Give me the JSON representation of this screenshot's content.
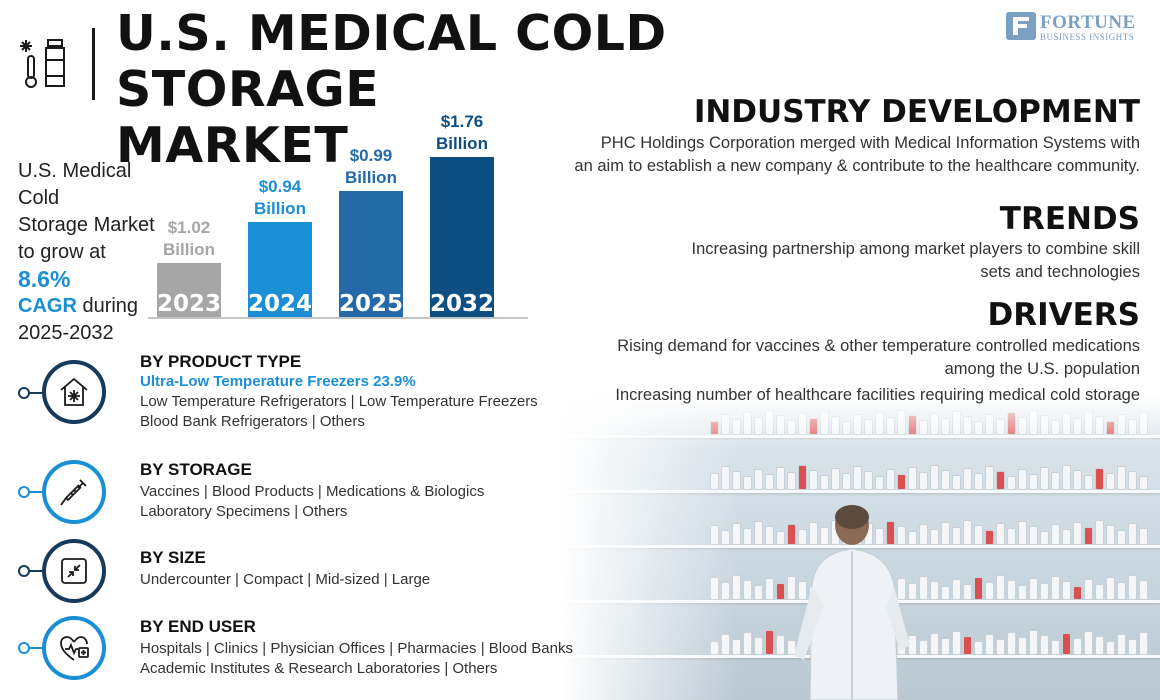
{
  "header": {
    "title_line1": "U.S. MEDICAL COLD STORAGE",
    "title_line2": "MARKET",
    "brand_name": "FORTUNE",
    "brand_sub": "BUSINESS INSIGHTS",
    "icon": "thermometer-vial-icon"
  },
  "stat": {
    "line1": "U.S. Medical Cold",
    "line2": "Storage Market",
    "line3": "to grow at",
    "cagr_value": "8.6%",
    "cagr_label": "CAGR",
    "during": " during",
    "period": "2025-2032"
  },
  "chart_data": {
    "type": "bar",
    "categories": [
      "2023",
      "2024",
      "2025",
      "2032"
    ],
    "values": [
      1.02,
      0.94,
      0.99,
      1.76
    ],
    "value_labels": [
      "$1.02",
      "$0.94",
      "$0.99",
      "$1.76"
    ],
    "unit_label": "Billion",
    "colors": [
      "#a6a6a6",
      "#1a8fd6",
      "#2469a8",
      "#0d4f82"
    ],
    "label_colors": [
      "#a6a6a6",
      "#1a8fd6",
      "#2469a8",
      "#0d4f82"
    ]
  },
  "industry": {
    "heading": "INDUSTRY DEVELOPMENT",
    "line1": "PHC Holdings Corporation merged with Medical Information Systems with",
    "line2": "an aim to establish a new company & contribute to the healthcare community."
  },
  "trends": {
    "heading": "TRENDS",
    "line1": "Increasing partnership among market players to combine skill",
    "line2": "sets and technologies"
  },
  "drivers": {
    "heading": "DRIVERS",
    "line1": "Rising demand for vaccines & other temperature controlled medications",
    "line2": "among the U.S. population",
    "line3": "Increasing number of healthcare facilities requiring medical cold storage"
  },
  "segments": {
    "product": {
      "heading": "BY PRODUCT TYPE",
      "highlight": "Ultra-Low Temperature Freezers 23.9%",
      "line1": "Low Temperature Refrigerators  |  Low Temperature Freezers",
      "line2": "Blood Bank Refrigerators  |  Others",
      "icon": "snowflake-house-icon"
    },
    "storage": {
      "heading": "BY STORAGE",
      "line1": "Vaccines  |  Blood Products  |  Medications & Biologics",
      "line2": "Laboratory Specimens  |  Others",
      "icon": "syringe-icon"
    },
    "size": {
      "heading": "BY SIZE",
      "line1": "Undercounter  |  Compact  |  Mid-sized  |  Large",
      "icon": "compress-arrows-icon"
    },
    "enduser": {
      "heading": "BY END USER",
      "line1": "Hospitals  |  Clinics  |  Physician Offices  |  Pharmacies  |  Blood Banks",
      "line2": "Academic Institutes & Research Laboratories  |  Others",
      "icon": "medical-heart-icon"
    }
  }
}
